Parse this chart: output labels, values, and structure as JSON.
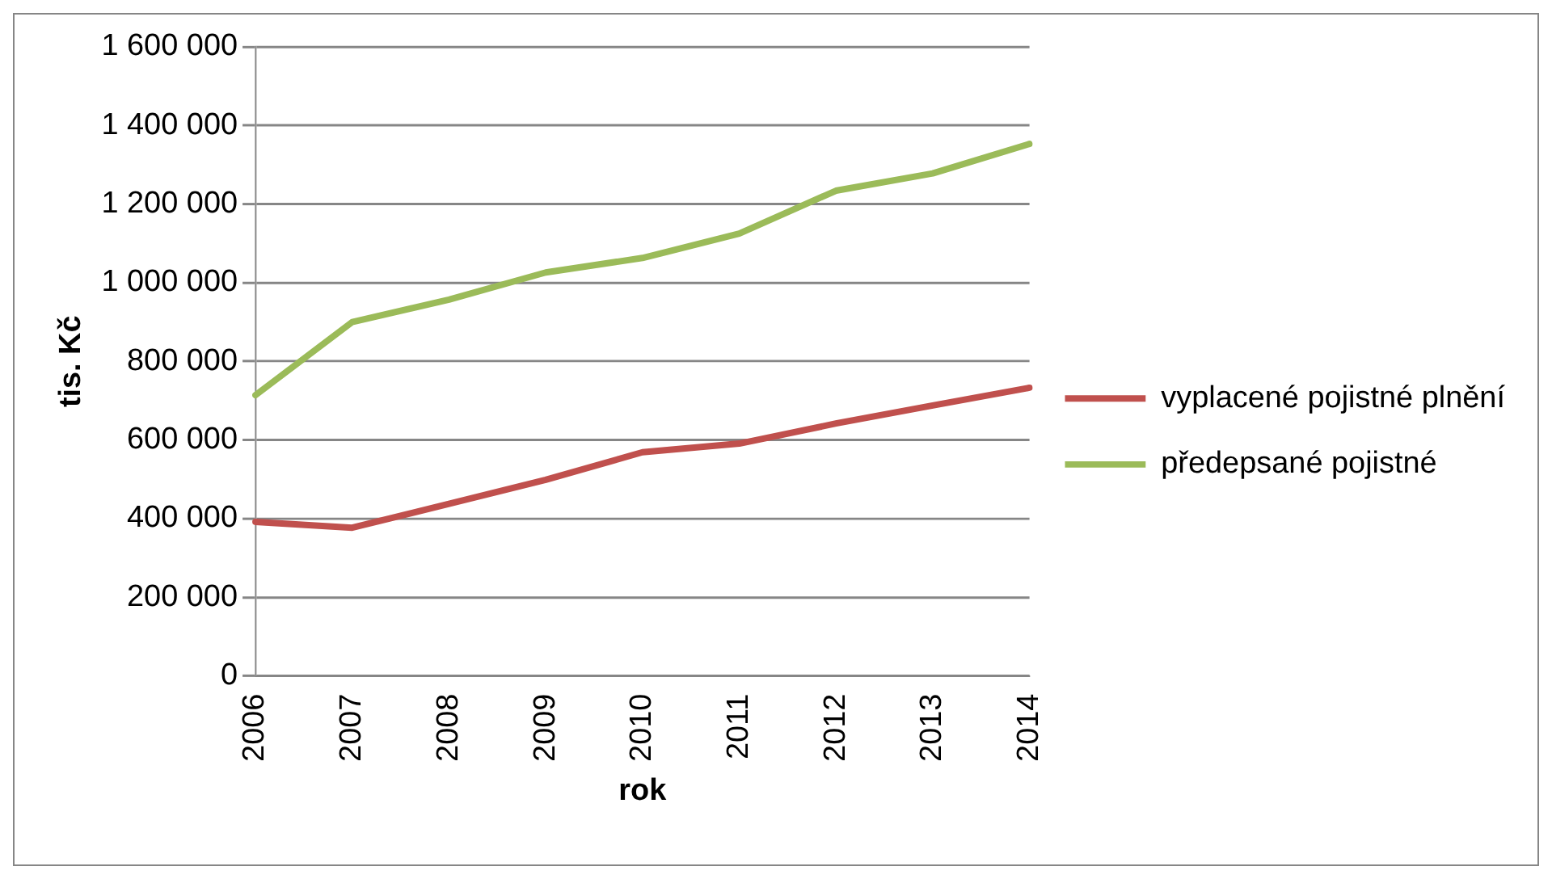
{
  "chart_data": {
    "type": "line",
    "xlabel": "rok",
    "ylabel": "tis. Kč",
    "categories": [
      "2006",
      "2007",
      "2008",
      "2009",
      "2010",
      "2011",
      "2012",
      "2013",
      "2014"
    ],
    "series": [
      {
        "name": "vyplacené pojistné plnění",
        "color": "#c0504d",
        "values": [
          392000,
          377000,
          438000,
          499000,
          569000,
          591000,
          642000,
          688000,
          733000
        ]
      },
      {
        "name": "předepsané pojistné",
        "color": "#9bbb59",
        "values": [
          714000,
          900000,
          957000,
          1026000,
          1063000,
          1125000,
          1234000,
          1278000,
          1353000
        ]
      }
    ],
    "ylim": [
      0,
      1600000
    ],
    "yticks": [
      0,
      {
        "value": 200000,
        "label": "200 000"
      },
      {
        "value": 400000,
        "label": "400 000"
      },
      {
        "value": 600000,
        "label": "600 000"
      },
      {
        "value": 800000,
        "label": "800 000"
      },
      {
        "value": 1000000,
        "label": "1 000 000"
      },
      {
        "value": 1200000,
        "label": "1 200 000"
      },
      {
        "value": 1400000,
        "label": "1 400 000"
      },
      {
        "value": 1600000,
        "label": "1 600 000"
      }
    ],
    "grid": "y",
    "legend": "right",
    "marker": "none",
    "line_style": "solid"
  }
}
